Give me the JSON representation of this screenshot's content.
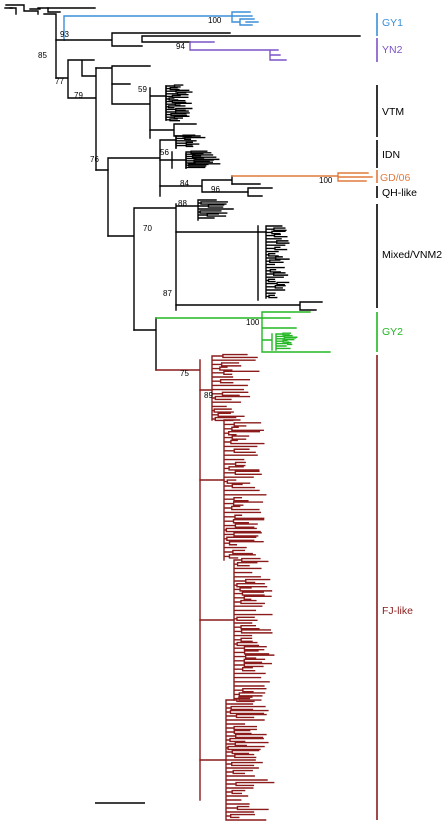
{
  "colors": {
    "default": "#000000",
    "GY1": "#3b8fd8",
    "YN2": "#7b52c8",
    "GD06": "#e07a3c",
    "GY2": "#22b822",
    "FJ": "#8b1a1a"
  },
  "clades": [
    {
      "id": "gy1",
      "label": "GY1",
      "color": "#3b8fd8"
    },
    {
      "id": "yn2",
      "label": "YN2",
      "color": "#7b52c8"
    },
    {
      "id": "vtm",
      "label": "VTM",
      "color": "#000000"
    },
    {
      "id": "idn",
      "label": "IDN",
      "color": "#000000"
    },
    {
      "id": "gd06",
      "label": "GD/06",
      "color": "#e07a3c"
    },
    {
      "id": "qh",
      "label": "QH-like",
      "color": "#000000"
    },
    {
      "id": "mixed",
      "label": "Mixed/VNM2",
      "color": "#000000"
    },
    {
      "id": "gy2",
      "label": "GY2",
      "color": "#22b822"
    },
    {
      "id": "fj",
      "label": "FJ-like",
      "color": "#8b1a1a"
    }
  ],
  "bootstrap": [
    {
      "id": "b100a",
      "text": "100"
    },
    {
      "id": "b93",
      "text": "93"
    },
    {
      "id": "b94",
      "text": "94"
    },
    {
      "id": "b85",
      "text": "85"
    },
    {
      "id": "b77",
      "text": "77"
    },
    {
      "id": "b79",
      "text": "79"
    },
    {
      "id": "b59",
      "text": "59"
    },
    {
      "id": "b76",
      "text": "76"
    },
    {
      "id": "b56",
      "text": "56"
    },
    {
      "id": "b84",
      "text": "84"
    },
    {
      "id": "b100b",
      "text": "100"
    },
    {
      "id": "b96",
      "text": "96"
    },
    {
      "id": "b88",
      "text": "88"
    },
    {
      "id": "b70",
      "text": "70"
    },
    {
      "id": "b87",
      "text": "87"
    },
    {
      "id": "b100c",
      "text": "100"
    },
    {
      "id": "b75",
      "text": "75"
    },
    {
      "id": "b89",
      "text": "89"
    }
  ]
}
